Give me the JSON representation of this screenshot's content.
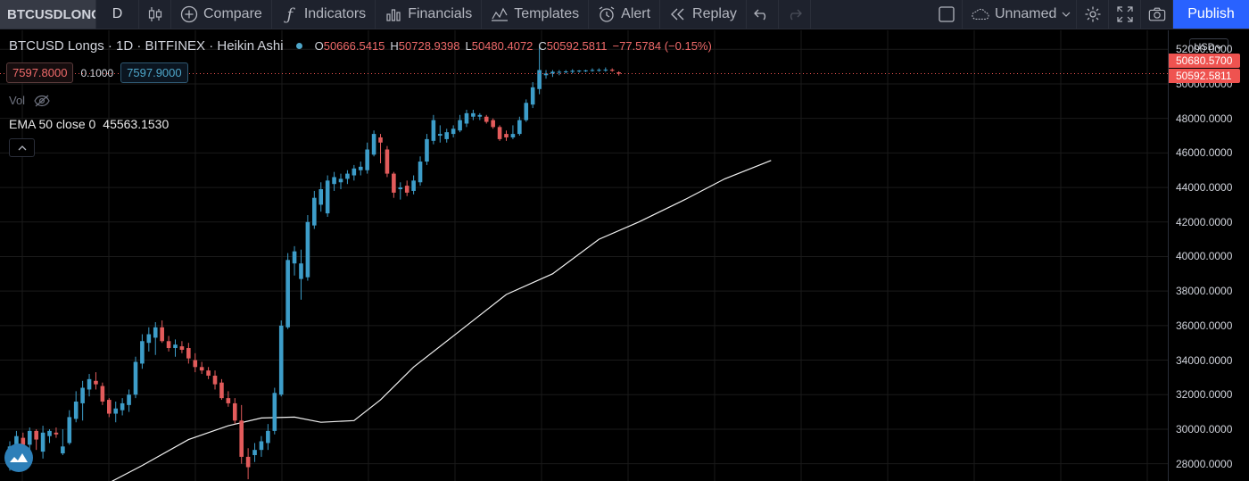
{
  "toolbar": {
    "symbol": "BTCUSDLONGS",
    "interval": "D",
    "compare": "Compare",
    "indicators": "Indicators",
    "financials": "Financials",
    "templates": "Templates",
    "alert": "Alert",
    "replay": "Replay",
    "layout_name": "Unnamed",
    "publish": "Publish"
  },
  "legend": {
    "title": "BTCUSD Longs · 1D · BITFINEX · Heikin Ashi",
    "o_key": "O",
    "o_val": "50666.5415",
    "h_key": "H",
    "h_val": "50728.9398",
    "l_key": "L",
    "l_val": "50480.4072",
    "c_key": "C",
    "c_val": "50592.5811",
    "change": "−77.5784 (−0.15%)"
  },
  "trade": {
    "sell": "7597.8000",
    "spread": "0.1000",
    "buy": "7597.9000"
  },
  "volume_label": "Vol",
  "ema": {
    "label": "EMA 50 close 0",
    "value": "45563.1530"
  },
  "currency": "USD",
  "price_tags": {
    "high": "50680.5700",
    "last": "50592.5811"
  },
  "colors": {
    "up": "#3d9dc9",
    "down": "#e25b5b",
    "ema": "#f2f2f2",
    "background": "#000000",
    "grid": "#1a1a1a",
    "tag": "#ef5350"
  },
  "chart_data": {
    "type": "candlestick",
    "style": "Heikin Ashi",
    "ylim": [
      27000,
      53100
    ],
    "y_ticks": [
      {
        "value": 28000,
        "label": "28000.0000"
      },
      {
        "value": 30000,
        "label": "30000.0000"
      },
      {
        "value": 32000,
        "label": "32000.0000"
      },
      {
        "value": 34000,
        "label": "34000.0000"
      },
      {
        "value": 36000,
        "label": "36000.0000"
      },
      {
        "value": 38000,
        "label": "38000.0000"
      },
      {
        "value": 40000,
        "label": "40000.0000"
      },
      {
        "value": 42000,
        "label": "42000.0000"
      },
      {
        "value": 44000,
        "label": "44000.0000"
      },
      {
        "value": 46000,
        "label": "46000.0000"
      },
      {
        "value": 48000,
        "label": "48000.0000"
      },
      {
        "value": 50000,
        "label": "50000.0000"
      },
      {
        "value": 52000,
        "label": "52000.0000"
      }
    ],
    "candles": [
      {
        "o": 28100,
        "h": 29300,
        "l": 27600,
        "c": 29000
      },
      {
        "o": 29000,
        "h": 29900,
        "l": 28200,
        "c": 29600
      },
      {
        "o": 29500,
        "h": 29800,
        "l": 28900,
        "c": 29100
      },
      {
        "o": 29100,
        "h": 30100,
        "l": 28400,
        "c": 29900
      },
      {
        "o": 29900,
        "h": 30000,
        "l": 28800,
        "c": 29400
      },
      {
        "o": 28700,
        "h": 30200,
        "l": 28300,
        "c": 29800
      },
      {
        "o": 29600,
        "h": 30000,
        "l": 29200,
        "c": 29900
      },
      {
        "o": 29800,
        "h": 30100,
        "l": 29500,
        "c": 29700
      },
      {
        "o": 28600,
        "h": 30000,
        "l": 28500,
        "c": 29000
      },
      {
        "o": 29200,
        "h": 31100,
        "l": 29100,
        "c": 30700
      },
      {
        "o": 30600,
        "h": 32200,
        "l": 30400,
        "c": 31600
      },
      {
        "o": 31500,
        "h": 32800,
        "l": 30500,
        "c": 32400
      },
      {
        "o": 32300,
        "h": 33200,
        "l": 31900,
        "c": 32900
      },
      {
        "o": 32800,
        "h": 33300,
        "l": 32300,
        "c": 32600
      },
      {
        "o": 32500,
        "h": 32700,
        "l": 31400,
        "c": 31600
      },
      {
        "o": 31700,
        "h": 31800,
        "l": 30700,
        "c": 30900
      },
      {
        "o": 30900,
        "h": 31600,
        "l": 30400,
        "c": 31200
      },
      {
        "o": 31100,
        "h": 31800,
        "l": 30800,
        "c": 31500
      },
      {
        "o": 31400,
        "h": 32300,
        "l": 31000,
        "c": 32000
      },
      {
        "o": 32000,
        "h": 34200,
        "l": 31800,
        "c": 33900
      },
      {
        "o": 33800,
        "h": 35500,
        "l": 33500,
        "c": 35100
      },
      {
        "o": 35000,
        "h": 35900,
        "l": 34500,
        "c": 35500
      },
      {
        "o": 35300,
        "h": 36200,
        "l": 34300,
        "c": 35900
      },
      {
        "o": 35900,
        "h": 36300,
        "l": 35000,
        "c": 35100
      },
      {
        "o": 35100,
        "h": 35400,
        "l": 34500,
        "c": 34700
      },
      {
        "o": 34700,
        "h": 35200,
        "l": 34200,
        "c": 34900
      },
      {
        "o": 34800,
        "h": 35100,
        "l": 34400,
        "c": 34600
      },
      {
        "o": 34700,
        "h": 35000,
        "l": 33800,
        "c": 34100
      },
      {
        "o": 34000,
        "h": 34400,
        "l": 33300,
        "c": 33600
      },
      {
        "o": 33600,
        "h": 33900,
        "l": 33200,
        "c": 33400
      },
      {
        "o": 33400,
        "h": 33600,
        "l": 32900,
        "c": 33100
      },
      {
        "o": 33100,
        "h": 33400,
        "l": 32300,
        "c": 32600
      },
      {
        "o": 32700,
        "h": 32900,
        "l": 31700,
        "c": 31800
      },
      {
        "o": 31800,
        "h": 32200,
        "l": 31300,
        "c": 31500
      },
      {
        "o": 31500,
        "h": 31800,
        "l": 30300,
        "c": 30500
      },
      {
        "o": 30500,
        "h": 31400,
        "l": 28000,
        "c": 28400
      },
      {
        "o": 28400,
        "h": 28900,
        "l": 27100,
        "c": 27800
      },
      {
        "o": 28500,
        "h": 29200,
        "l": 28100,
        "c": 28800
      },
      {
        "o": 28800,
        "h": 29600,
        "l": 28400,
        "c": 29300
      },
      {
        "o": 29200,
        "h": 30300,
        "l": 28800,
        "c": 29900
      },
      {
        "o": 29900,
        "h": 32400,
        "l": 29700,
        "c": 32100
      },
      {
        "o": 32000,
        "h": 36300,
        "l": 31900,
        "c": 36000
      },
      {
        "o": 35900,
        "h": 40200,
        "l": 35800,
        "c": 39800
      },
      {
        "o": 39600,
        "h": 40600,
        "l": 38900,
        "c": 40300
      },
      {
        "o": 38700,
        "h": 40400,
        "l": 37500,
        "c": 39600
      },
      {
        "o": 38800,
        "h": 42400,
        "l": 38600,
        "c": 42000
      },
      {
        "o": 41800,
        "h": 43800,
        "l": 41600,
        "c": 43400
      },
      {
        "o": 43000,
        "h": 44300,
        "l": 42600,
        "c": 43900
      },
      {
        "o": 42500,
        "h": 44700,
        "l": 42300,
        "c": 44400
      },
      {
        "o": 44200,
        "h": 44900,
        "l": 43800,
        "c": 44600
      },
      {
        "o": 44300,
        "h": 44800,
        "l": 43900,
        "c": 44500
      },
      {
        "o": 44500,
        "h": 45000,
        "l": 44200,
        "c": 44800
      },
      {
        "o": 44700,
        "h": 45300,
        "l": 44400,
        "c": 45100
      },
      {
        "o": 45000,
        "h": 45500,
        "l": 44700,
        "c": 45200
      },
      {
        "o": 45000,
        "h": 46600,
        "l": 44800,
        "c": 46200
      },
      {
        "o": 45900,
        "h": 47300,
        "l": 45800,
        "c": 47100
      },
      {
        "o": 46900,
        "h": 47100,
        "l": 45400,
        "c": 46600
      },
      {
        "o": 46200,
        "h": 46400,
        "l": 44600,
        "c": 44800
      },
      {
        "o": 44800,
        "h": 44900,
        "l": 43400,
        "c": 43700
      },
      {
        "o": 43900,
        "h": 44300,
        "l": 43300,
        "c": 44000
      },
      {
        "o": 44100,
        "h": 44400,
        "l": 43500,
        "c": 43700
      },
      {
        "o": 43800,
        "h": 44700,
        "l": 43600,
        "c": 44400
      },
      {
        "o": 44300,
        "h": 45800,
        "l": 44100,
        "c": 45500
      },
      {
        "o": 45500,
        "h": 47100,
        "l": 45300,
        "c": 46800
      },
      {
        "o": 46700,
        "h": 48200,
        "l": 46500,
        "c": 47900
      },
      {
        "o": 47000,
        "h": 47600,
        "l": 46600,
        "c": 47100
      },
      {
        "o": 46800,
        "h": 47400,
        "l": 46600,
        "c": 47200
      },
      {
        "o": 47100,
        "h": 47600,
        "l": 46900,
        "c": 47400
      },
      {
        "o": 47300,
        "h": 48200,
        "l": 47200,
        "c": 47900
      },
      {
        "o": 47700,
        "h": 48500,
        "l": 47500,
        "c": 48300
      },
      {
        "o": 48100,
        "h": 48500,
        "l": 47900,
        "c": 48300
      },
      {
        "o": 48100,
        "h": 48300,
        "l": 47900,
        "c": 48200
      },
      {
        "o": 48100,
        "h": 48200,
        "l": 47700,
        "c": 47800
      },
      {
        "o": 47900,
        "h": 48000,
        "l": 47400,
        "c": 47500
      },
      {
        "o": 47500,
        "h": 47600,
        "l": 46700,
        "c": 46800
      },
      {
        "o": 47100,
        "h": 47300,
        "l": 46700,
        "c": 46900
      },
      {
        "o": 46900,
        "h": 47600,
        "l": 46800,
        "c": 47100
      },
      {
        "o": 47100,
        "h": 48100,
        "l": 47000,
        "c": 47900
      },
      {
        "o": 47900,
        "h": 49100,
        "l": 47800,
        "c": 48900
      },
      {
        "o": 48800,
        "h": 50100,
        "l": 48600,
        "c": 49800
      },
      {
        "o": 49700,
        "h": 52300,
        "l": 49400,
        "c": 50800
      },
      {
        "o": 50500,
        "h": 50800,
        "l": 50300,
        "c": 50600
      },
      {
        "o": 50600,
        "h": 50800,
        "l": 50400,
        "c": 50700
      },
      {
        "o": 50700,
        "h": 50800,
        "l": 50500,
        "c": 50700
      },
      {
        "o": 50700,
        "h": 50800,
        "l": 50600,
        "c": 50720
      },
      {
        "o": 50700,
        "h": 50850,
        "l": 50600,
        "c": 50760
      },
      {
        "o": 50760,
        "h": 50800,
        "l": 50650,
        "c": 50770
      },
      {
        "o": 50750,
        "h": 50820,
        "l": 50680,
        "c": 50780
      },
      {
        "o": 50780,
        "h": 50900,
        "l": 50700,
        "c": 50800
      },
      {
        "o": 50790,
        "h": 50900,
        "l": 50700,
        "c": 50810
      },
      {
        "o": 50800,
        "h": 50950,
        "l": 50700,
        "c": 50820
      },
      {
        "o": 50820,
        "h": 50900,
        "l": 50700,
        "c": 50760
      },
      {
        "o": 50666.5415,
        "h": 50728.9398,
        "l": 50480.4072,
        "c": 50592.5811
      }
    ],
    "ema50": {
      "name": "EMA 50 close 0",
      "points": [
        {
          "i": 13,
          "v": 26500
        },
        {
          "i": 20,
          "v": 27900
        },
        {
          "i": 27,
          "v": 29400
        },
        {
          "i": 33,
          "v": 30200
        },
        {
          "i": 38,
          "v": 30650
        },
        {
          "i": 43,
          "v": 30700
        },
        {
          "i": 47,
          "v": 30400
        },
        {
          "i": 52,
          "v": 30500
        },
        {
          "i": 56,
          "v": 31700
        },
        {
          "i": 61,
          "v": 33600
        },
        {
          "i": 68,
          "v": 35700
        },
        {
          "i": 75,
          "v": 37800
        },
        {
          "i": 82,
          "v": 39000
        },
        {
          "i": 89,
          "v": 41000
        },
        {
          "i": 95,
          "v": 42000
        },
        {
          "i": 102,
          "v": 43300
        },
        {
          "i": 108,
          "v": 44500
        },
        {
          "i": 115,
          "v": 45563.153
        }
      ]
    }
  }
}
